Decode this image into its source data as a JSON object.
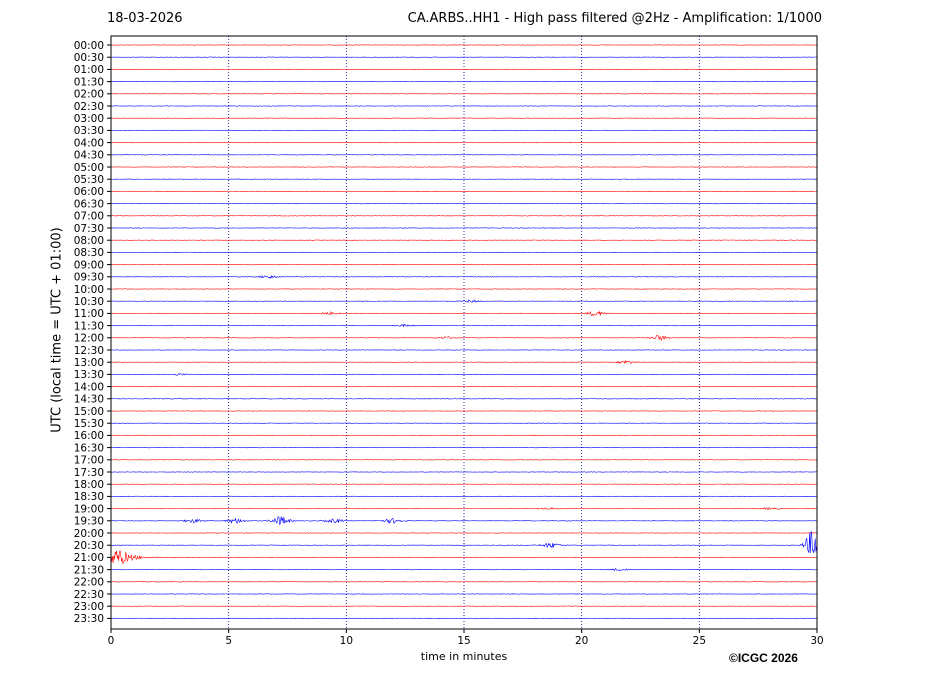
{
  "header": {
    "date": "18-03-2026",
    "title": "CA.ARBS..HH1 - High pass filtered @2Hz - Amplification: 1/1000"
  },
  "footer": {
    "copyright": "©ICGC 2026"
  },
  "colors": {
    "trace_a": "#ff0000",
    "trace_b": "#0000ff",
    "grid": "#000080"
  },
  "chart_data": {
    "type": "line",
    "title": "CA.ARBS..HH1 - High pass filtered @2Hz - Amplification: 1/1000",
    "xlabel": "time in minutes",
    "ylabel": "UTC (local time = UTC + 01:00)",
    "xlim": [
      0,
      30
    ],
    "x_ticks": [
      0,
      5,
      10,
      15,
      20,
      25,
      30
    ],
    "grid": "vertical dotted lines at x ticks",
    "rows": [
      "00:00",
      "00:30",
      "01:00",
      "01:30",
      "02:00",
      "02:30",
      "03:00",
      "03:30",
      "04:00",
      "04:30",
      "05:00",
      "05:30",
      "06:00",
      "06:30",
      "07:00",
      "07:30",
      "08:00",
      "08:30",
      "09:00",
      "09:30",
      "10:00",
      "10:30",
      "11:00",
      "11:30",
      "12:00",
      "12:30",
      "13:00",
      "13:30",
      "14:00",
      "14:30",
      "15:00",
      "15:30",
      "16:00",
      "16:30",
      "17:00",
      "17:30",
      "18:00",
      "18:30",
      "19:00",
      "19:30",
      "20:00",
      "20:30",
      "21:00",
      "21:30",
      "22:00",
      "22:30",
      "23:00",
      "23:30"
    ],
    "row_colors": "alternating red / blue traces, first row red",
    "events": [
      {
        "row": "09:30",
        "minute": 6.7,
        "amplitude": 1.5
      },
      {
        "row": "10:30",
        "minute": 15.3,
        "amplitude": 1.2
      },
      {
        "row": "11:00",
        "minute": 9.3,
        "amplitude": 1.2
      },
      {
        "row": "11:00",
        "minute": 20.6,
        "amplitude": 2.5
      },
      {
        "row": "11:30",
        "minute": 12.5,
        "amplitude": 1.0
      },
      {
        "row": "12:00",
        "minute": 14.2,
        "amplitude": 1.2
      },
      {
        "row": "12:00",
        "minute": 23.3,
        "amplitude": 2.5
      },
      {
        "row": "13:00",
        "minute": 21.9,
        "amplitude": 1.5
      },
      {
        "row": "13:30",
        "minute": 2.9,
        "amplitude": 0.8
      },
      {
        "row": "19:00",
        "minute": 18.6,
        "amplitude": 0.8
      },
      {
        "row": "19:00",
        "minute": 28.0,
        "amplitude": 1.0
      },
      {
        "row": "19:30",
        "minute": 3.5,
        "amplitude": 1.8
      },
      {
        "row": "19:30",
        "minute": 5.3,
        "amplitude": 2.5
      },
      {
        "row": "19:30",
        "minute": 7.2,
        "amplitude": 4.5
      },
      {
        "row": "19:30",
        "minute": 9.5,
        "amplitude": 2.0
      },
      {
        "row": "19:30",
        "minute": 12.0,
        "amplitude": 2.5
      },
      {
        "row": "20:30",
        "minute": 18.7,
        "amplitude": 2.5
      },
      {
        "row": "20:30",
        "minute": 29.8,
        "amplitude": 14.0
      },
      {
        "row": "21:00",
        "minute": 0.4,
        "amplitude": 8.0
      },
      {
        "row": "21:30",
        "minute": 21.6,
        "amplitude": 1.2
      }
    ]
  }
}
